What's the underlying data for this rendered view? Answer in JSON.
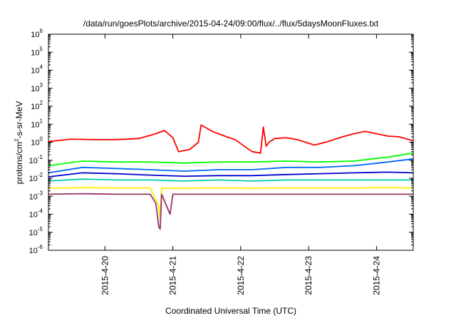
{
  "chart_data": {
    "type": "line",
    "title": "/data/run/goesPlots/archive/2015-04-24/09:00/flux/../flux/5daysMoonFluxes.txt",
    "xlabel": "Coordinated Universal Time (UTC)",
    "ylabel": {
      "prefix": "protons/cm",
      "sup": "2",
      "suffix": "-s-sr-MeV"
    },
    "x_ticks": [
      "2015-4-20",
      "2015-4-21",
      "2015-4-22",
      "2015-4-23",
      "2015-4-24"
    ],
    "xlim": [
      "2015-04-19 04:00",
      "2015-04-24 13:00"
    ],
    "y_scale": "log",
    "ylim": [
      1e-06,
      1000000.0
    ],
    "y_ticks": [
      {
        "base": "10",
        "exp": "-6"
      },
      {
        "base": "10",
        "exp": "-5"
      },
      {
        "base": "10",
        "exp": "-4"
      },
      {
        "base": "10",
        "exp": "-3"
      },
      {
        "base": "10",
        "exp": "-2"
      },
      {
        "base": "10",
        "exp": "-1"
      },
      {
        "base": "10",
        "exp": "0"
      },
      {
        "base": "10",
        "exp": "1"
      },
      {
        "base": "10",
        "exp": "2"
      },
      {
        "base": "10",
        "exp": "3"
      },
      {
        "base": "10",
        "exp": "4"
      },
      {
        "base": "10",
        "exp": "5"
      },
      {
        "base": "10",
        "exp": "6"
      }
    ],
    "grid": false,
    "series": [
      {
        "color": "#ff0000",
        "x": [
          "2015-04-19 04:00",
          "2015-04-19 12:00",
          "2015-04-19 20:00",
          "2015-04-20 04:00",
          "2015-04-20 12:00",
          "2015-04-20 18:00",
          "2015-04-20 21:00",
          "2015-04-21 00:00",
          "2015-04-21 02:00",
          "2015-04-21 06:00",
          "2015-04-21 09:00",
          "2015-04-21 10:00",
          "2015-04-21 12:00",
          "2015-04-21 14:00",
          "2015-04-21 19:00",
          "2015-04-21 22:00",
          "2015-04-22 04:00",
          "2015-04-22 07:00",
          "2015-04-22 08:00",
          "2015-04-22 09:00",
          "2015-04-22 10:00",
          "2015-04-22 12:00",
          "2015-04-22 16:00",
          "2015-04-22 20:00",
          "2015-04-23 02:00",
          "2015-04-23 06:00",
          "2015-04-23 12:00",
          "2015-04-23 16:00",
          "2015-04-23 20:00",
          "2015-04-24 04:00",
          "2015-04-24 08:00",
          "2015-04-24 13:00"
        ],
        "values": [
          1.1,
          1.5,
          1.4,
          1.4,
          1.6,
          3.0,
          4.5,
          1.8,
          0.3,
          0.4,
          1.0,
          9.0,
          6.0,
          4.0,
          2.0,
          1.4,
          0.3,
          0.25,
          7.0,
          0.6,
          1.0,
          1.6,
          1.8,
          1.4,
          0.7,
          1.0,
          2.0,
          3.0,
          4.0,
          2.2,
          2.0,
          1.2
        ]
      },
      {
        "color": "#00ff00",
        "x": [
          "2015-04-19 04:00",
          "2015-04-19 16:00",
          "2015-04-20 04:00",
          "2015-04-20 16:00",
          "2015-04-21 04:00",
          "2015-04-21 16:00",
          "2015-04-22 04:00",
          "2015-04-22 16:00",
          "2015-04-23 04:00",
          "2015-04-23 16:00",
          "2015-04-24 04:00",
          "2015-04-24 13:00"
        ],
        "values": [
          0.05,
          0.09,
          0.08,
          0.08,
          0.07,
          0.08,
          0.08,
          0.09,
          0.08,
          0.09,
          0.15,
          0.25
        ]
      },
      {
        "color": "#0066ff",
        "x": [
          "2015-04-19 04:00",
          "2015-04-19 16:00",
          "2015-04-20 04:00",
          "2015-04-20 16:00",
          "2015-04-21 04:00",
          "2015-04-21 16:00",
          "2015-04-22 04:00",
          "2015-04-22 16:00",
          "2015-04-23 04:00",
          "2015-04-23 16:00",
          "2015-04-24 04:00",
          "2015-04-24 13:00"
        ],
        "values": [
          0.02,
          0.04,
          0.035,
          0.03,
          0.025,
          0.03,
          0.03,
          0.04,
          0.04,
          0.05,
          0.08,
          0.12
        ]
      },
      {
        "color": "#0000cc",
        "x": [
          "2015-04-19 04:00",
          "2015-04-19 16:00",
          "2015-04-20 04:00",
          "2015-04-20 16:00",
          "2015-04-21 04:00",
          "2015-04-21 16:00",
          "2015-04-22 04:00",
          "2015-04-22 16:00",
          "2015-04-23 04:00",
          "2015-04-23 16:00",
          "2015-04-24 04:00",
          "2015-04-24 13:00"
        ],
        "values": [
          0.012,
          0.02,
          0.018,
          0.015,
          0.013,
          0.014,
          0.014,
          0.016,
          0.018,
          0.02,
          0.022,
          0.02
        ]
      },
      {
        "color": "#00ccaa",
        "x": [
          "2015-04-19 04:00",
          "2015-04-19 16:00",
          "2015-04-20 04:00",
          "2015-04-20 16:00",
          "2015-04-21 04:00",
          "2015-04-21 16:00",
          "2015-04-22 04:00",
          "2015-04-22 16:00",
          "2015-04-23 04:00",
          "2015-04-23 16:00",
          "2015-04-24 04:00",
          "2015-04-24 13:00"
        ],
        "values": [
          0.007,
          0.009,
          0.008,
          0.008,
          0.007,
          0.008,
          0.007,
          0.008,
          0.008,
          0.008,
          0.008,
          0.008
        ]
      },
      {
        "color": "#ffee00",
        "x": [
          "2015-04-19 04:00",
          "2015-04-19 16:00",
          "2015-04-20 04:00",
          "2015-04-20 16:00",
          "2015-04-20 19:00",
          "2015-04-20 19:30",
          "2015-04-20 20:00",
          "2015-04-21 04:00",
          "2015-04-21 16:00",
          "2015-04-22 04:00",
          "2015-04-22 16:00",
          "2015-04-23 04:00",
          "2015-04-23 16:00",
          "2015-04-24 04:00",
          "2015-04-24 13:00"
        ],
        "values": [
          0.0028,
          0.003,
          0.0029,
          0.0029,
          0.0003,
          5e-05,
          0.0028,
          0.0028,
          0.0029,
          0.0028,
          0.0029,
          0.0029,
          0.0029,
          0.003,
          0.0029
        ]
      },
      {
        "color": "#993366",
        "x": [
          "2015-04-19 04:00",
          "2015-04-19 16:00",
          "2015-04-20 04:00",
          "2015-04-20 16:00",
          "2015-04-20 18:00",
          "2015-04-20 19:00",
          "2015-04-20 19:30",
          "2015-04-20 20:00",
          "2015-04-20 23:00",
          "2015-04-21 00:00",
          "2015-04-21 04:00",
          "2015-04-21 16:00",
          "2015-04-22 04:00",
          "2015-04-22 16:00",
          "2015-04-23 04:00",
          "2015-04-23 16:00",
          "2015-04-24 04:00",
          "2015-04-24 13:00"
        ],
        "values": [
          0.0013,
          0.0014,
          0.0013,
          0.0013,
          0.0004,
          2e-05,
          1.5e-05,
          0.0013,
          0.0001,
          0.0013,
          0.0013,
          0.0013,
          0.0013,
          0.0013,
          0.0013,
          0.0013,
          0.0013,
          0.0013
        ]
      }
    ]
  }
}
